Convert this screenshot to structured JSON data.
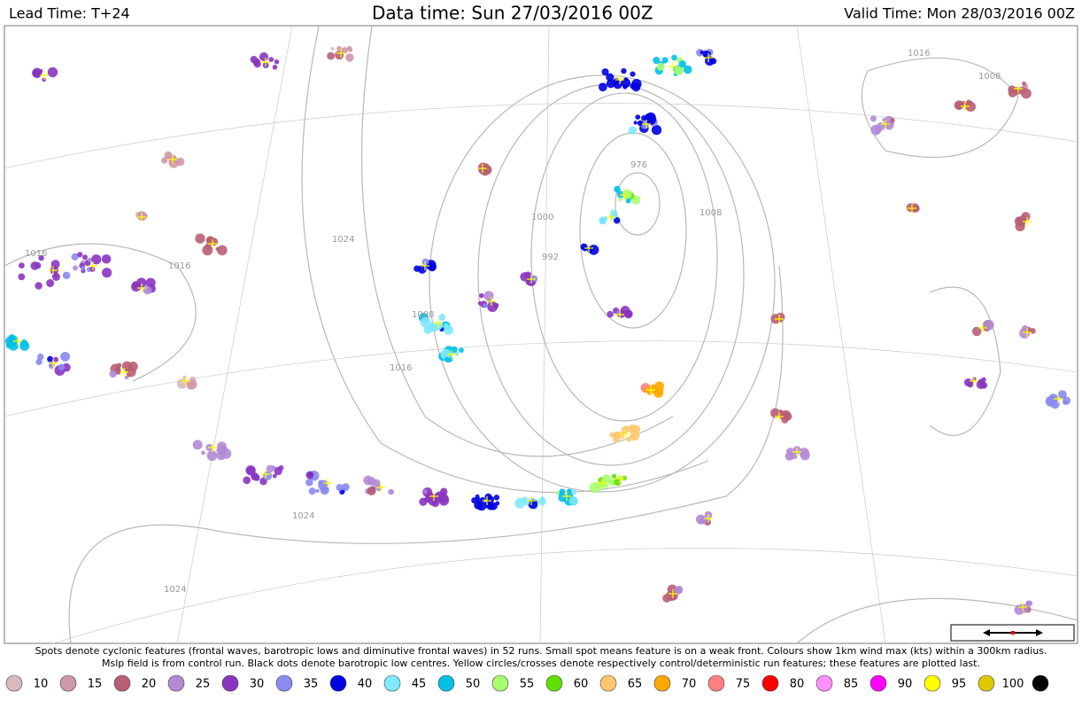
{
  "header": {
    "lead_time": "Lead Time: T+24",
    "data_time": "Data time:  Sun 27/03/2016 00Z",
    "valid_time": "Valid Time: Mon 28/03/2016 00Z"
  },
  "map": {
    "isobar_labels": [
      "1016",
      "1016",
      "1008",
      "1000",
      "992",
      "976",
      "1008",
      "1016",
      "1024",
      "1024",
      "1024",
      "1016",
      "1008",
      "1016"
    ]
  },
  "caption": [
    "Spots denote cyclonic features (frontal waves, barotropic lows and diminutive frontal waves) in 52 runs. Small spot means feature is on a weak front. Colours show 1km wind max (kts) within a 300km radius.",
    "Mslp field is from control run. Black dots denote barotropic low centres. Yellow circles/crosses denote respectively control/deterministic run features; these features are plotted last."
  ],
  "legend": {
    "thresholds": [
      10,
      15,
      20,
      25,
      30,
      35,
      40,
      45,
      50,
      55,
      60,
      65,
      70,
      75,
      80,
      85,
      90,
      95,
      100
    ],
    "colors": [
      "#d9b9bd",
      "#cf97a8",
      "#b85f73",
      "#b38ad6",
      "#8a35c0",
      "#8a8af0",
      "#0000e0",
      "#80e8ff",
      "#00c0e8",
      "#a8ff70",
      "#60e000",
      "#ffc870",
      "#ffa800",
      "#ff8080",
      "#ff0000",
      "#ff90ff",
      "#ff00ff",
      "#ffff00",
      "#e0c800",
      "#000000"
    ]
  }
}
